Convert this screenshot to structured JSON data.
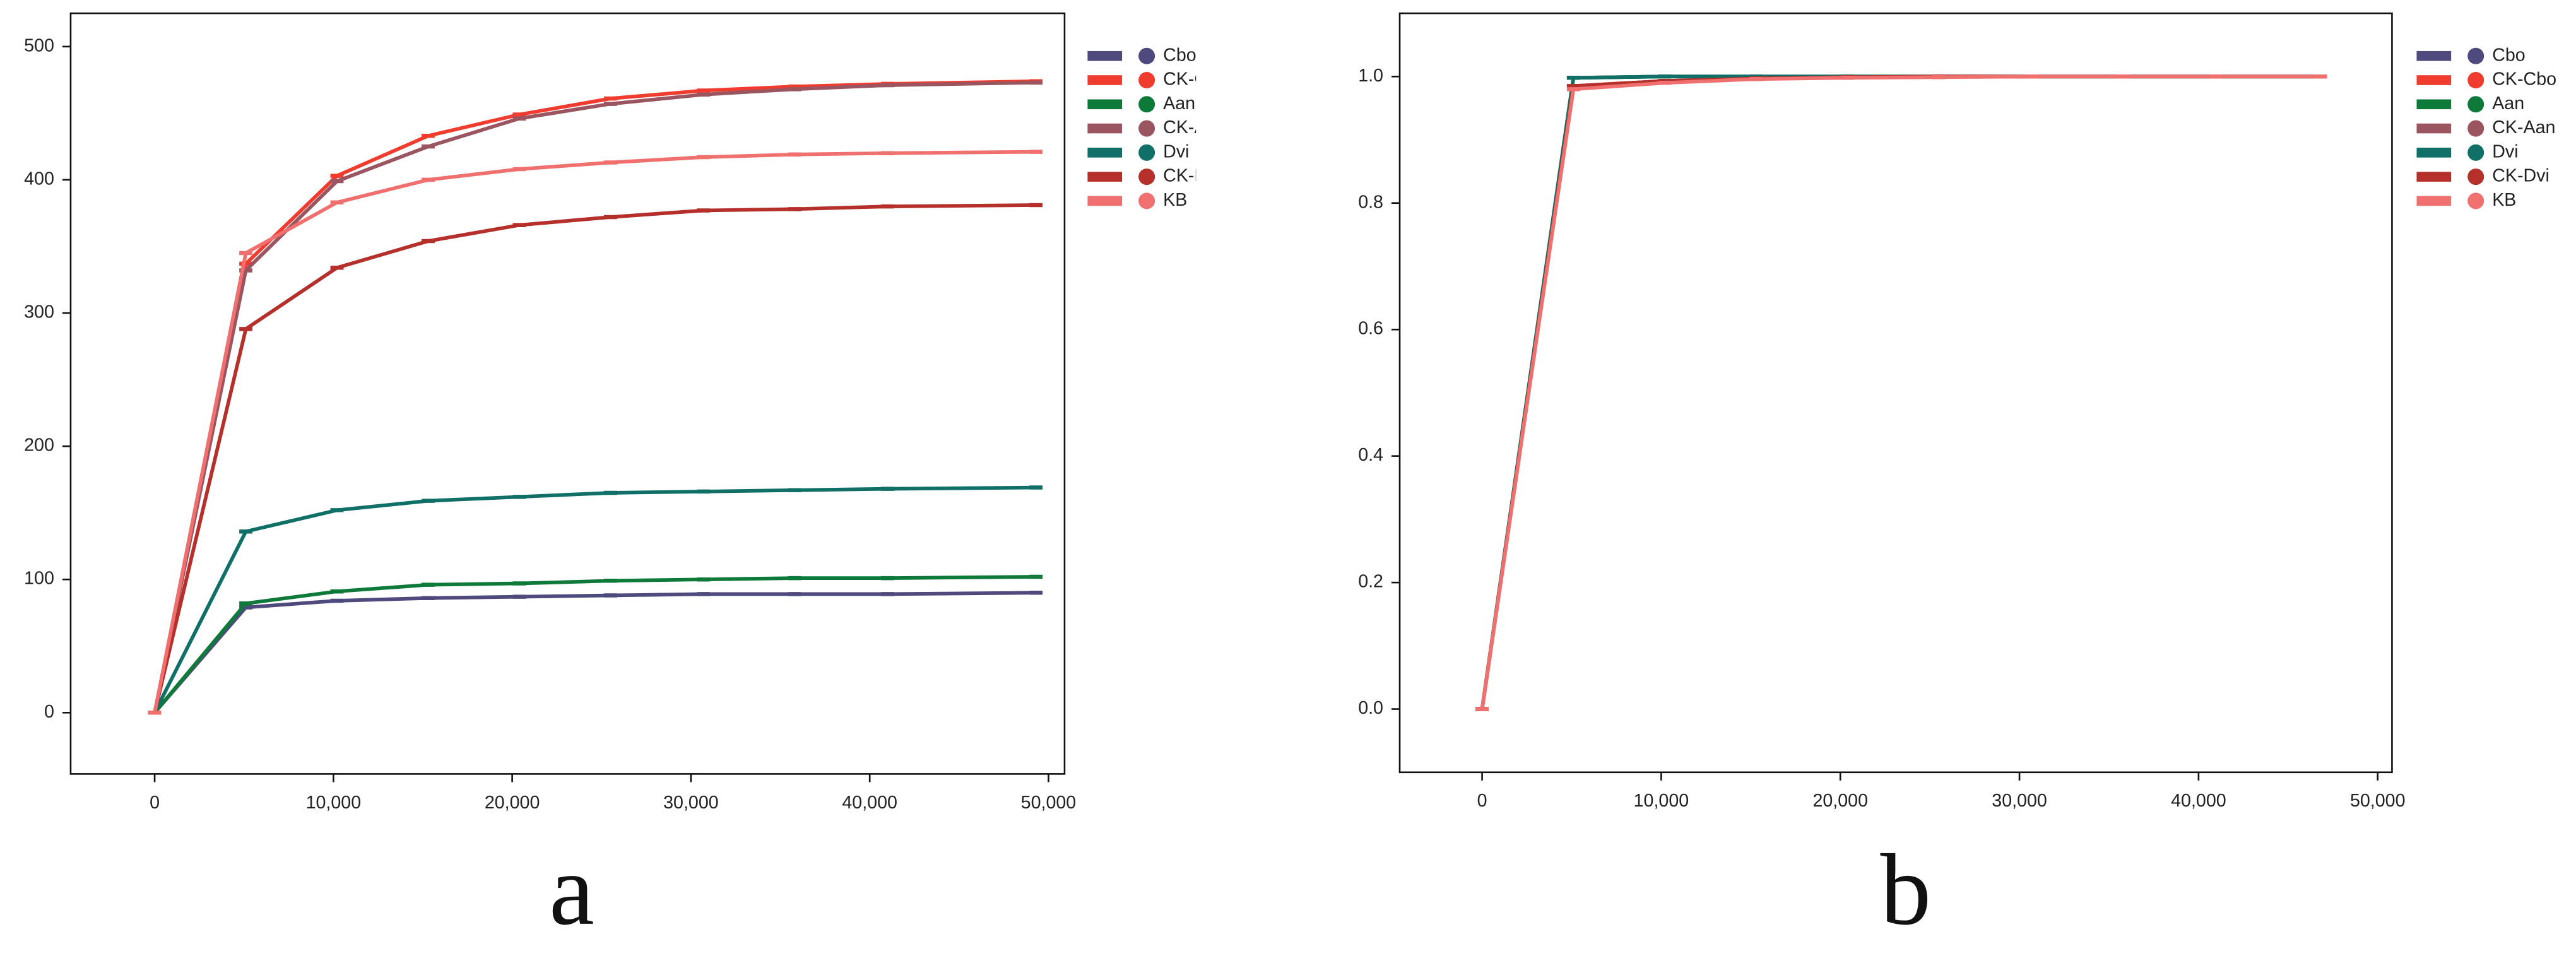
{
  "chart_data": [
    {
      "type": "line",
      "panel_label": "a",
      "x": [
        0,
        5100,
        10200,
        15300,
        20400,
        25500,
        30700,
        35800,
        41000,
        49300
      ],
      "xlim": [
        -4700,
        50900
      ],
      "xticks": [
        0,
        {
          "value": 10000,
          "label": "10,000"
        },
        {
          "value": 20000,
          "label": "20,000"
        },
        {
          "value": 30000,
          "label": "30,000"
        },
        {
          "value": 40000,
          "label": "40,000"
        },
        {
          "value": 50000,
          "label": "50,000"
        }
      ],
      "ylim": [
        -46,
        525
      ],
      "yticks": [
        0,
        100,
        200,
        300,
        400,
        500
      ],
      "series": [
        {
          "name": "Cbo",
          "color": "#4f4a7e",
          "values": [
            0,
            79,
            84,
            86,
            87,
            88,
            89,
            89,
            89,
            90
          ]
        },
        {
          "name": "CK-Cbo",
          "color": "#f03c2e",
          "values": [
            0,
            337,
            403,
            433,
            449,
            461,
            467,
            470,
            472,
            474
          ]
        },
        {
          "name": "Aan",
          "color": "#0e7a3a",
          "values": [
            0,
            82,
            91,
            96,
            97,
            99,
            100,
            101,
            101,
            102
          ]
        },
        {
          "name": "CK-Aan",
          "color": "#9b5560",
          "values": [
            0,
            332,
            399,
            425,
            446,
            457,
            464,
            468,
            471,
            473
          ]
        },
        {
          "name": "Dvi",
          "color": "#107068",
          "values": [
            0,
            136,
            152,
            159,
            162,
            165,
            166,
            167,
            168,
            169
          ]
        },
        {
          "name": "CK-Dvi",
          "color": "#b5302a",
          "values": [
            0,
            288,
            334,
            354,
            366,
            372,
            377,
            378,
            380,
            381
          ]
        },
        {
          "name": "KB",
          "color": "#f07070",
          "values": [
            0,
            345,
            383,
            400,
            408,
            413,
            417,
            419,
            420,
            421
          ]
        }
      ]
    },
    {
      "type": "line",
      "panel_label": "b",
      "x": [
        0,
        5100,
        10200,
        15300,
        20400,
        25500,
        30700,
        35800,
        41000,
        46800
      ],
      "xlim": [
        -4600,
        50800
      ],
      "xticks": [
        0,
        {
          "value": 10000,
          "label": "10,000"
        },
        {
          "value": 20000,
          "label": "20,000"
        },
        {
          "value": 30000,
          "label": "30,000"
        },
        {
          "value": 40000,
          "label": "40,000"
        },
        {
          "value": 50000,
          "label": "50,000"
        }
      ],
      "ylim": [
        -0.1,
        1.1
      ],
      "yticks": [
        0.0,
        0.2,
        0.4,
        0.6,
        0.8,
        1.0
      ],
      "series": [
        {
          "name": "Cbo",
          "color": "#4f4a7e",
          "values": [
            0,
            0.998,
            1,
            1,
            1,
            1,
            1,
            1,
            1,
            1
          ]
        },
        {
          "name": "CK-Cbo",
          "color": "#f03c2e",
          "values": [
            0,
            0.985,
            0.993,
            0.997,
            0.999,
            1,
            1,
            1,
            1,
            1
          ]
        },
        {
          "name": "Aan",
          "color": "#0e7a3a",
          "values": [
            0,
            0.998,
            1,
            1,
            1,
            1,
            1,
            1,
            1,
            1
          ]
        },
        {
          "name": "CK-Aan",
          "color": "#9b5560",
          "values": [
            0,
            0.985,
            0.993,
            0.997,
            0.999,
            1,
            1,
            1,
            1,
            1
          ]
        },
        {
          "name": "Dvi",
          "color": "#107068",
          "values": [
            0,
            0.998,
            1,
            1,
            1,
            1,
            1,
            1,
            1,
            1
          ]
        },
        {
          "name": "CK-Dvi",
          "color": "#b5302a",
          "values": [
            0,
            0.985,
            0.993,
            0.997,
            0.999,
            1,
            1,
            1,
            1,
            1
          ]
        },
        {
          "name": "KB",
          "color": "#f07070",
          "values": [
            0,
            0.98,
            0.99,
            0.996,
            0.998,
            0.999,
            1,
            1,
            1,
            1
          ]
        }
      ]
    }
  ]
}
